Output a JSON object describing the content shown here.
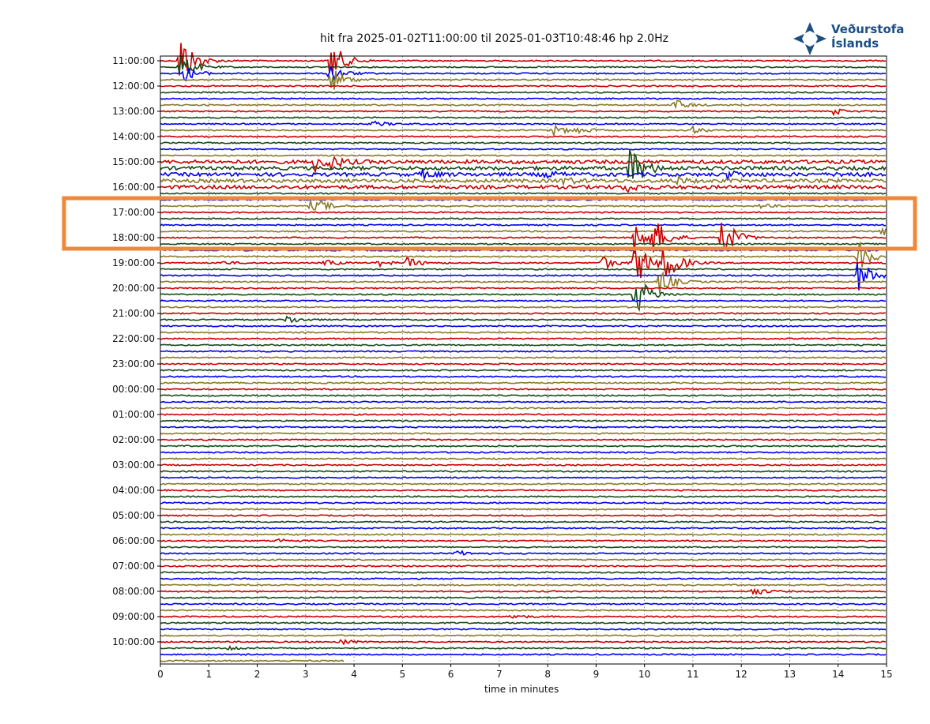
{
  "chart_data": {
    "type": "line",
    "title": "hit fra 2025-01-02T11:00:00 til 2025-01-03T10:48:46 hp 2.0Hz",
    "xlabel": "time in minutes",
    "ylabel": "",
    "xlim": [
      0,
      15
    ],
    "x_ticks": [
      "0",
      "1",
      "2",
      "3",
      "4",
      "5",
      "6",
      "7",
      "8",
      "9",
      "10",
      "11",
      "12",
      "13",
      "14",
      "15"
    ],
    "y_ticks": [
      "11:00:00",
      "12:00:00",
      "13:00:00",
      "14:00:00",
      "15:00:00",
      "16:00:00",
      "17:00:00",
      "18:00:00",
      "19:00:00",
      "20:00:00",
      "21:00:00",
      "22:00:00",
      "23:00:00",
      "00:00:00",
      "01:00:00",
      "02:00:00",
      "03:00:00",
      "04:00:00",
      "05:00:00",
      "06:00:00",
      "07:00:00",
      "08:00:00",
      "09:00:00",
      "10:00:00"
    ],
    "trace_minutes_per_line": 15,
    "trace_colors": [
      "#cc0000",
      "#1a4a1a",
      "#0000ee",
      "#8b7a2a"
    ],
    "last_trace_end_minutes": 3.8,
    "grid": "vertical dotted at each minute",
    "events": [
      {
        "trace": 0,
        "x": 0.4,
        "amp": 40
      },
      {
        "trace": 1,
        "x": 0.4,
        "amp": 18
      },
      {
        "trace": 2,
        "x": 0.5,
        "amp": 10
      },
      {
        "trace": 0,
        "x": 3.5,
        "amp": 30
      },
      {
        "trace": 3,
        "x": 3.5,
        "amp": 18
      },
      {
        "trace": 2,
        "x": 3.5,
        "amp": 12
      },
      {
        "trace": 7,
        "x": 10.6,
        "amp": 8
      },
      {
        "trace": 8,
        "x": 13.9,
        "amp": 4
      },
      {
        "trace": 10,
        "x": 4.4,
        "amp": 4
      },
      {
        "trace": 11,
        "x": 8.1,
        "amp": 7
      },
      {
        "trace": 11,
        "x": 8.6,
        "amp": 4
      },
      {
        "trace": 11,
        "x": 11.0,
        "amp": 4
      },
      {
        "trace": 16,
        "x": 3.2,
        "amp": 12
      },
      {
        "trace": 16,
        "x": 3.5,
        "amp": 6
      },
      {
        "trace": 17,
        "x": 9.7,
        "amp": 32
      },
      {
        "trace": 18,
        "x": 5.4,
        "amp": 5
      },
      {
        "trace": 18,
        "x": 7.9,
        "amp": 5
      },
      {
        "trace": 18,
        "x": 14.0,
        "amp": 4
      },
      {
        "trace": 19,
        "x": 8.3,
        "amp": 5
      },
      {
        "trace": 19,
        "x": 10.6,
        "amp": 5
      },
      {
        "trace": 18,
        "x": 11.7,
        "amp": 6
      },
      {
        "trace": 20,
        "x": 9.6,
        "amp": 6
      },
      {
        "trace": 23,
        "x": 3.1,
        "amp": 6
      },
      {
        "trace": 23,
        "x": 3.3,
        "amp": 5
      },
      {
        "trace": 23,
        "x": 12.4,
        "amp": 3
      },
      {
        "trace": 27,
        "x": 14.9,
        "amp": 5
      },
      {
        "trace": 28,
        "x": 11.6,
        "amp": 30
      },
      {
        "trace": 28,
        "x": 9.8,
        "amp": 30
      },
      {
        "trace": 28,
        "x": 10.2,
        "amp": 22
      },
      {
        "trace": 32,
        "x": 9.1,
        "amp": 10
      },
      {
        "trace": 32,
        "x": 9.8,
        "amp": 35
      },
      {
        "trace": 32,
        "x": 10.4,
        "amp": 30
      },
      {
        "trace": 32,
        "x": 1.2,
        "amp": 3
      },
      {
        "trace": 32,
        "x": 3.4,
        "amp": 4
      },
      {
        "trace": 32,
        "x": 4.5,
        "amp": 4
      },
      {
        "trace": 32,
        "x": 5.1,
        "amp": 7
      },
      {
        "trace": 31,
        "x": 14.4,
        "amp": 22
      },
      {
        "trace": 34,
        "x": 14.4,
        "amp": 22
      },
      {
        "trace": 35,
        "x": 10.3,
        "amp": 18
      },
      {
        "trace": 37,
        "x": 9.8,
        "amp": 30
      },
      {
        "trace": 41,
        "x": 2.6,
        "amp": 6
      },
      {
        "trace": 76,
        "x": 2.4,
        "amp": 3
      },
      {
        "trace": 78,
        "x": 6.1,
        "amp": 4
      },
      {
        "trace": 84,
        "x": 12.2,
        "amp": 6
      },
      {
        "trace": 88,
        "x": 7.2,
        "amp": 4
      },
      {
        "trace": 92,
        "x": 3.7,
        "amp": 4
      },
      {
        "trace": 93,
        "x": 1.4,
        "amp": 3
      }
    ],
    "noisy_band": {
      "from_trace": 16,
      "to_trace": 20
    }
  },
  "logo": {
    "line1": "Veðurstofa",
    "line2": "Íslands"
  },
  "colors": {
    "highlight_box": "#f0883a"
  }
}
